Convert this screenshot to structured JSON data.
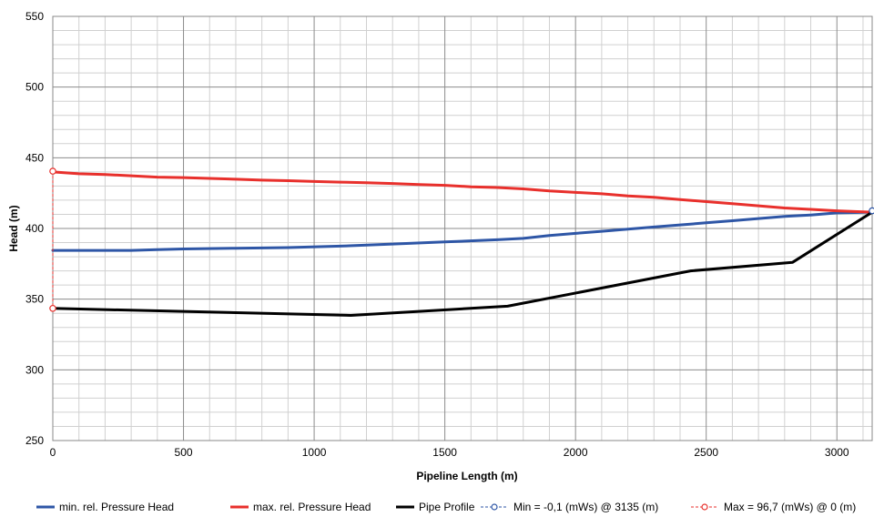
{
  "chart_data": {
    "type": "line",
    "xlabel": "Pipeline Length (m)",
    "ylabel": "Head (m)",
    "xlim": [
      0,
      3135
    ],
    "ylim": [
      250,
      550
    ],
    "x_ticks": [
      0,
      500,
      1000,
      1500,
      2000,
      2500,
      3000
    ],
    "y_ticks": [
      250,
      300,
      350,
      400,
      450,
      500,
      550
    ],
    "x_tick_labels": [
      "0",
      "500",
      "1000",
      "1500",
      "2000",
      "2500",
      "3000"
    ],
    "y_tick_labels": [
      "250",
      "300",
      "350",
      "400",
      "450",
      "500",
      "550"
    ],
    "x_minor_step": 100,
    "y_minor_step": 10,
    "grid": true,
    "legend_position": "bottom",
    "series": [
      {
        "name": "min. rel. Pressure Head",
        "color": "#2e56a6",
        "style": "solid",
        "x": [
          0,
          200,
          300,
          400,
          500,
          700,
          900,
          1100,
          1300,
          1500,
          1700,
          1800,
          1900,
          2000,
          2100,
          2200,
          2300,
          2400,
          2500,
          2600,
          2700,
          2800,
          2900,
          3000,
          3135
        ],
        "y": [
          384.5,
          384.5,
          384.5,
          385,
          385.5,
          386,
          386.5,
          387.5,
          389,
          390.5,
          392,
          393,
          395,
          396.5,
          398,
          399.5,
          401,
          402.5,
          404,
          405.5,
          407,
          408.5,
          409.5,
          411,
          411.5
        ]
      },
      {
        "name": "max. rel. Pressure Head",
        "color": "#e8302c",
        "style": "solid",
        "x": [
          0,
          100,
          200,
          300,
          400,
          500,
          600,
          700,
          800,
          900,
          1000,
          1100,
          1200,
          1300,
          1400,
          1500,
          1600,
          1700,
          1800,
          1900,
          2000,
          2100,
          2200,
          2300,
          2400,
          2500,
          2600,
          2700,
          2800,
          2900,
          3000,
          3135
        ],
        "y": [
          440,
          438.7,
          438.2,
          437.3,
          436.3,
          436,
          435.4,
          434.8,
          434.2,
          433.8,
          433.2,
          432.8,
          432.3,
          431.8,
          431,
          430.5,
          429.5,
          429,
          428,
          426.5,
          425.5,
          424.5,
          423,
          422,
          420.5,
          419,
          417.5,
          416,
          414.5,
          413.5,
          412.5,
          411.5
        ]
      },
      {
        "name": "Pipe Profile",
        "color": "#000000",
        "style": "solid",
        "x": [
          0,
          1140,
          1740,
          2440,
          2830,
          3135
        ],
        "y": [
          343.5,
          338.5,
          345,
          370,
          376,
          411.5
        ]
      },
      {
        "name": "Min = -0,1 (mWs) @ 3135 (m)",
        "color": "#2e56a6",
        "style": "dashed-marker",
        "x": [
          3135
        ],
        "y": [
          412.5
        ]
      },
      {
        "name": "Max = 96,7 (mWs) @ 0 (m)",
        "color": "#e8302c",
        "style": "dashed-marker",
        "x": [
          0,
          0
        ],
        "y": [
          440.5,
          343.5
        ]
      }
    ]
  }
}
